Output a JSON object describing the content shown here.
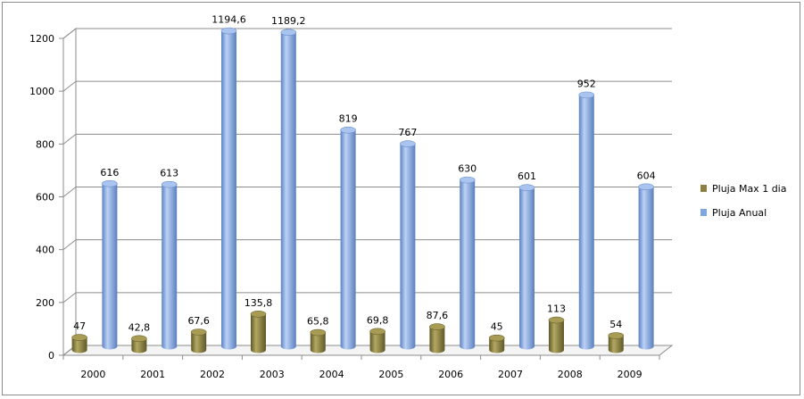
{
  "chart_data": {
    "type": "bar",
    "style": "3d-cylinder",
    "categories": [
      "2000",
      "2001",
      "2002",
      "2003",
      "2004",
      "2005",
      "2006",
      "2007",
      "2008",
      "2009"
    ],
    "series": [
      {
        "name": "Pluja Max 1 dia",
        "color": "#8a7f3f",
        "values": [
          47,
          42.8,
          67.6,
          135.8,
          65.8,
          69.8,
          87.6,
          45,
          113,
          54
        ],
        "labels": [
          "47",
          "42,8",
          "67,6",
          "135,8",
          "65,8",
          "69,8",
          "87,6",
          "45",
          "113",
          "54"
        ]
      },
      {
        "name": "Pluja Anual",
        "color": "#7ea6e0",
        "values": [
          616,
          613,
          1194.6,
          1189.2,
          819,
          767,
          630,
          601,
          952,
          604
        ],
        "labels": [
          "616",
          "613",
          "1194,6",
          "1189,2",
          "819",
          "767",
          "630",
          "601",
          "952",
          "604"
        ]
      }
    ],
    "ylim": [
      0,
      1200
    ],
    "yticks": [
      0,
      200,
      400,
      600,
      800,
      1000,
      1200
    ],
    "ytick_labels": [
      "0",
      "200",
      "400",
      "600",
      "800",
      "1000",
      "1200"
    ],
    "grid": true,
    "legend_position": "right",
    "title": "",
    "xlabel": "",
    "ylabel": ""
  }
}
